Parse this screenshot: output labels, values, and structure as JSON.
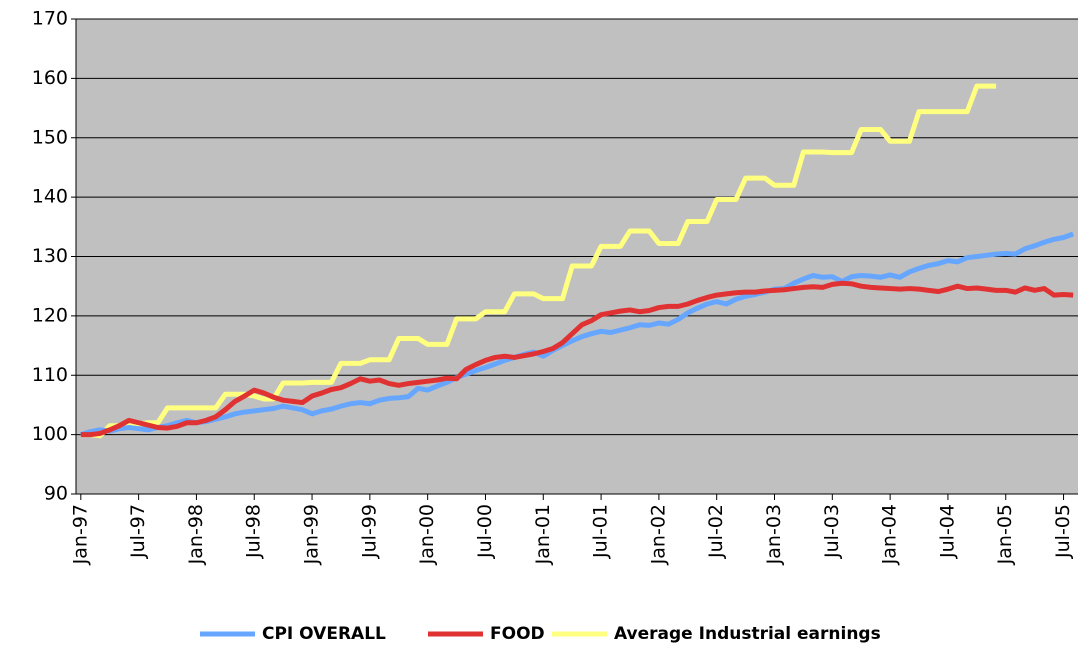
{
  "chart_data": {
    "type": "line",
    "categories": [
      "Jan-97",
      null,
      null,
      null,
      null,
      null,
      "Jul-97",
      null,
      null,
      null,
      null,
      null,
      "Jan-98",
      null,
      null,
      null,
      null,
      null,
      "Jul-98",
      null,
      null,
      null,
      null,
      null,
      "Jan-99",
      null,
      null,
      null,
      null,
      null,
      "Jul-99",
      null,
      null,
      null,
      null,
      null,
      "Jan-00",
      null,
      null,
      null,
      null,
      null,
      "Jul-00",
      null,
      null,
      null,
      null,
      null,
      "Jan-01",
      null,
      null,
      null,
      null,
      null,
      "Jul-01",
      null,
      null,
      null,
      null,
      null,
      "Jan-02",
      null,
      null,
      null,
      null,
      null,
      "Jul-02",
      null,
      null,
      null,
      null,
      null,
      "Jan-03",
      null,
      null,
      null,
      null,
      null,
      "Jul-03",
      null,
      null,
      null,
      null,
      null,
      "Jan-04",
      null,
      null,
      null,
      null,
      null,
      "Jul-04",
      null,
      null,
      null,
      null,
      null,
      "Jan-05",
      null,
      null,
      null,
      null,
      null,
      "Jul-05",
      null
    ],
    "series": [
      {
        "name": "CPI OVERALL",
        "color": "#66a6ff",
        "values": [
          100,
          100.5,
          100.8,
          100.6,
          101,
          101.2,
          101,
          100.8,
          101.2,
          101.5,
          102,
          102.4,
          102,
          102.2,
          102.6,
          103,
          103.5,
          103.8,
          104,
          104.2,
          104.4,
          104.8,
          104.5,
          104.2,
          103.5,
          104,
          104.3,
          104.8,
          105.2,
          105.4,
          105.2,
          105.8,
          106.1,
          106.2,
          106.4,
          107.8,
          107.5,
          108.2,
          108.8,
          109.6,
          110.2,
          110.8,
          111.3,
          111.9,
          112.5,
          113,
          113.5,
          113.9,
          113.2,
          114.2,
          115,
          115.8,
          116.5,
          117,
          117.4,
          117.2,
          117.6,
          118,
          118.5,
          118.4,
          118.8,
          118.6,
          119.4,
          120.5,
          121.3,
          122,
          122.4,
          122,
          122.8,
          123.3,
          123.6,
          124,
          124.5,
          124.6,
          125.5,
          126.2,
          126.8,
          126.5,
          126.6,
          125.8,
          126.6,
          126.8,
          126.7,
          126.5,
          126.9,
          126.5,
          127.4,
          128,
          128.5,
          128.8,
          129.3,
          129.1,
          129.8,
          130,
          130.2,
          130.4,
          130.5,
          130.4,
          131.3,
          131.8,
          132.4,
          132.9,
          133.2,
          133.8
        ]
      },
      {
        "name": "FOOD",
        "color": "#e03232",
        "values": [
          100,
          100,
          100.2,
          100.8,
          101.5,
          102.4,
          102,
          101.6,
          101.2,
          101.1,
          101.4,
          102,
          102,
          102.4,
          103,
          104.2,
          105.6,
          106.5,
          107.5,
          107,
          106.3,
          105.8,
          105.6,
          105.4,
          106.5,
          107,
          107.6,
          107.9,
          108.6,
          109.4,
          109,
          109.2,
          108.6,
          108.3,
          108.6,
          108.8,
          109,
          109.2,
          109.5,
          109.4,
          111,
          111.8,
          112.5,
          113,
          113.2,
          113,
          113.3,
          113.6,
          114,
          114.5,
          115.5,
          117,
          118.5,
          119.2,
          120.2,
          120.5,
          120.8,
          121,
          120.7,
          120.9,
          121.4,
          121.6,
          121.6,
          122,
          122.6,
          123.1,
          123.5,
          123.7,
          123.9,
          124,
          124,
          124.2,
          124.3,
          124.4,
          124.6,
          124.8,
          124.9,
          124.8,
          125.3,
          125.5,
          125.4,
          125,
          124.8,
          124.7,
          124.6,
          124.5,
          124.6,
          124.5,
          124.3,
          124.1,
          124.5,
          125,
          124.6,
          124.7,
          124.5,
          124.3,
          124.3,
          124,
          124.7,
          124.3,
          124.6,
          123.5,
          123.6,
          123.5
        ]
      },
      {
        "name": "Average Industrial earnings",
        "color": "#ffff80",
        "values": [
          100,
          100,
          99.8,
          101.5,
          101.5,
          101.5,
          101.8,
          102,
          102,
          104.5,
          104.5,
          104.5,
          104.5,
          104.5,
          104.5,
          106.8,
          106.8,
          106.8,
          106.5,
          106,
          106,
          108.7,
          108.7,
          108.7,
          108.8,
          108.8,
          108.8,
          112,
          112,
          112,
          112.6,
          112.6,
          112.6,
          116.2,
          116.2,
          116.2,
          115.2,
          115.2,
          115.2,
          119.5,
          119.5,
          119.5,
          120.7,
          120.7,
          120.7,
          123.7,
          123.7,
          123.7,
          122.9,
          122.9,
          122.9,
          128.4,
          128.4,
          128.4,
          131.7,
          131.7,
          131.7,
          134.3,
          134.3,
          134.3,
          132.2,
          132.2,
          132.2,
          135.9,
          135.9,
          135.9,
          139.6,
          139.6,
          139.6,
          143.2,
          143.2,
          143.2,
          142,
          142,
          142,
          147.6,
          147.6,
          147.6,
          147.5,
          147.5,
          147.5,
          151.4,
          151.4,
          151.4,
          149.4,
          149.4,
          149.4,
          154.4,
          154.4,
          154.4,
          154.4,
          154.4,
          154.4,
          158.7,
          158.7,
          158.7,
          null,
          null,
          null,
          null,
          null,
          null,
          null,
          null
        ]
      }
    ],
    "ylim": [
      90,
      170
    ],
    "yticks": [
      90,
      100,
      110,
      120,
      130,
      140,
      150,
      160,
      170
    ],
    "grid": true,
    "legend": "bottom"
  }
}
